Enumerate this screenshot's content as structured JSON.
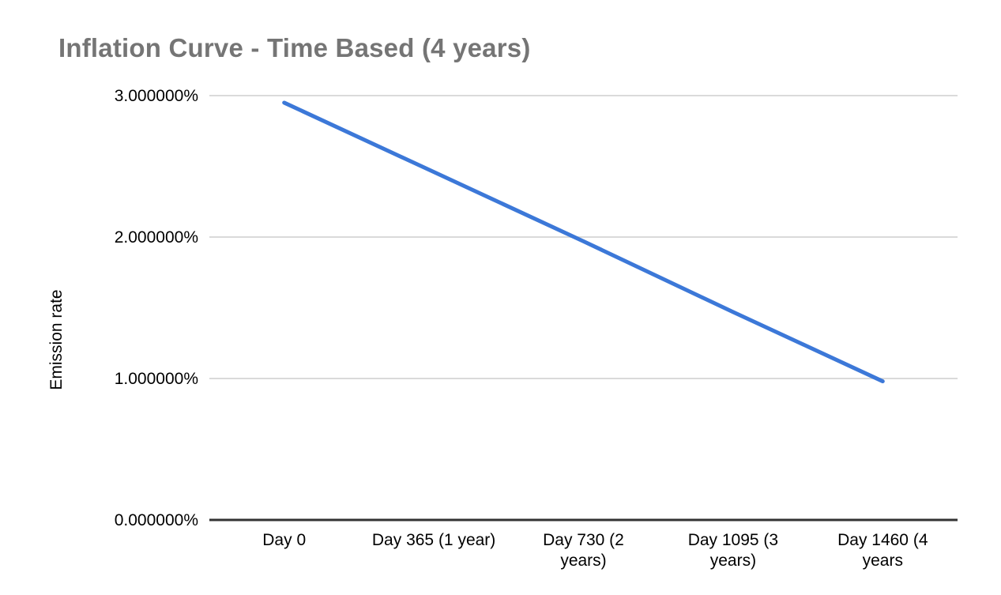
{
  "chart_data": {
    "type": "line",
    "title": "Inflation Curve - Time Based (4 years)",
    "ylabel": "Emission rate",
    "xlabel": "",
    "categories": [
      "Day 0",
      "Day 365 (1 year)",
      "Day 730 (2 years)",
      "Day 1095 (3 years)",
      "Day 1460 (4 years"
    ],
    "xtick_display_lines": [
      [
        "Day 0"
      ],
      [
        "Day 365 (1 year)"
      ],
      [
        "Day 730 (2",
        "years)"
      ],
      [
        "Day 1095 (3",
        "years)"
      ],
      [
        "Day 1460 (4",
        "years"
      ]
    ],
    "series": [
      {
        "name": "Emission rate",
        "color": "#3c78d8",
        "values": [
          2.95,
          2.46,
          1.97,
          1.47,
          0.98
        ]
      }
    ],
    "ylim": [
      0,
      3
    ],
    "yticks": [
      {
        "value": 3,
        "label": "3.000000%"
      },
      {
        "value": 2,
        "label": "2.000000%"
      },
      {
        "value": 1,
        "label": "1.000000%"
      },
      {
        "value": 0,
        "label": "0.000000%"
      }
    ],
    "grid": true,
    "legend": "none",
    "line_width": 5
  },
  "colors": {
    "title": "#757575",
    "series_line": "#3c78d8",
    "gridline": "#dadada",
    "axis_baseline": "#333333",
    "tick_text": "#000000",
    "background": "#ffffff"
  }
}
